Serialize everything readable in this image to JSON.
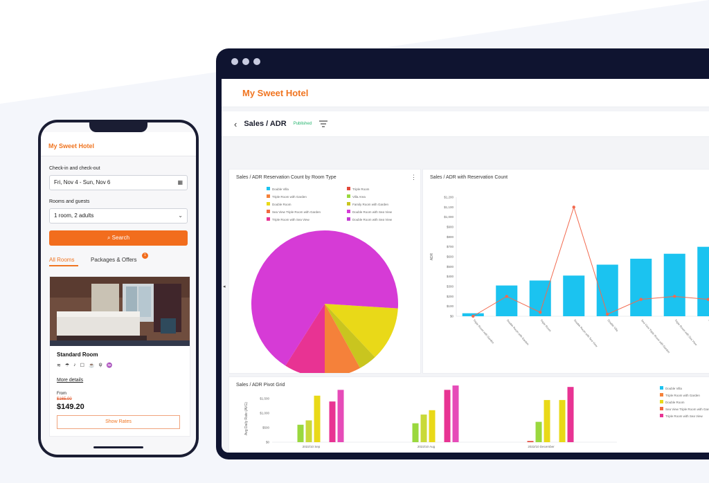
{
  "tablet": {
    "brand": "My Sweet Hotel",
    "toolbar": {
      "title": "Sales / ADR",
      "status": "Published"
    },
    "panels": {
      "pie_title": "Sales / ADR Reservation Count by Room Type",
      "combo_title": "Sales / ADR with Reservation Count",
      "pivot_title": "Sales / ADR Pivot Grid"
    }
  },
  "phone": {
    "brand": "My Sweet Hotel",
    "checkin_label": "Check-in and check-out",
    "dates_value": "Fri, Nov 4 - Sun, Nov 6",
    "guests_label": "Rooms and guests",
    "guests_value": "1 room, 2 adults",
    "search_label": "Search",
    "tabs": {
      "all": "All Rooms",
      "packages": "Packages & Offers",
      "notification_count": "1"
    },
    "room": {
      "name": "Standard Room",
      "more_details": "More details",
      "from": "From",
      "old_price": "$165.00",
      "price": "$149.20",
      "show_rates": "Show Rates"
    }
  },
  "colors": {
    "brand_orange": "#f07521",
    "cyan": "#1bc3f0",
    "magenta": "#d63bd6",
    "pink": "#e83393",
    "orange": "#f5813a",
    "yellow": "#e9d918",
    "green": "#9ad83e",
    "tablet_frame": "#0f1430"
  },
  "chart_data": [
    {
      "type": "pie",
      "title": "Sales / ADR Reservation Count by Room Type",
      "legend": [
        {
          "name": "Double Villa",
          "color": "#1bc3f0"
        },
        {
          "name": "Triple Room",
          "color": "#e2483a"
        },
        {
          "name": "Triple Room with Garden",
          "color": "#f5813a"
        },
        {
          "name": "Villa Area",
          "color": "#9ad83e"
        },
        {
          "name": "Double Room",
          "color": "#e9d918"
        },
        {
          "name": "Family Room with Garden",
          "color": "#c9c51f"
        },
        {
          "name": "Sea View Triple Room with Garden",
          "color": "#f06a3f"
        },
        {
          "name": "Double Room with Sea View",
          "color": "#d63bd6"
        },
        {
          "name": "Triple Room with Sea View",
          "color": "#e83393"
        },
        {
          "name": "Double Room with Sea View",
          "color": "#c43cd3"
        }
      ],
      "slices": [
        {
          "color": "#d63bd6",
          "value": 67
        },
        {
          "color": "#e9d918",
          "value": 12
        },
        {
          "color": "#f5813a",
          "value": 8
        },
        {
          "color": "#e83393",
          "value": 9
        },
        {
          "color": "#c9c51f",
          "value": 4
        }
      ]
    },
    {
      "type": "bar",
      "title": "Sales / ADR with Reservation Count",
      "ylabel": "ADR",
      "yticks": [
        "$0",
        "$100",
        "$200",
        "$300",
        "$400",
        "$500",
        "$600",
        "$700",
        "$800",
        "$900",
        "$1,000",
        "$1,100",
        "$1,200"
      ],
      "categories": [
        "Triple Room with Garden",
        "Double Room with Garden",
        "Triple Room",
        "Double Room with Sea View",
        "Double Villa",
        "Sea View Triple Room with Garden",
        "Triple Room with Sea View",
        "Family Room"
      ],
      "series": [
        {
          "type": "bar",
          "values": [
            30,
            310,
            360,
            410,
            520,
            580,
            630,
            700
          ]
        },
        {
          "type": "line",
          "values": [
            0,
            200,
            40,
            1100,
            20,
            170,
            200,
            170
          ]
        }
      ]
    },
    {
      "type": "bar",
      "title": "Sales / ADR Pivot Grid",
      "ylabel": "Avg Daily Rate (AVG)",
      "yticks": [
        "$0",
        "$500",
        "$1,000",
        "$1,500"
      ],
      "categories": [
        "2022/10 Sep",
        "2022/10 Aug",
        "2022/10 December"
      ],
      "legend": [
        {
          "name": "Double Villa",
          "color": "#1bc3f0"
        },
        {
          "name": "Triple Room with Garden",
          "color": "#f5813a"
        },
        {
          "name": "Double Room",
          "color": "#e9d918"
        },
        {
          "name": "Sea View Triple Room with Garden",
          "color": "#f06a3f"
        },
        {
          "name": "Triple Room with Sea View",
          "color": "#e83393"
        }
      ],
      "groups": [
        {
          "bars": [
            {
              "color": "#9ad83e",
              "value": 600
            },
            {
              "color": "#c9d93a",
              "value": 750
            },
            {
              "color": "#e9d918",
              "value": 1600
            },
            {
              "color": "#e83393",
              "value": 1400
            },
            {
              "color": "#e64bb8",
              "value": 1800
            }
          ]
        },
        {
          "bars": [
            {
              "color": "#9ad83e",
              "value": 650
            },
            {
              "color": "#c9d93a",
              "value": 950
            },
            {
              "color": "#e9d918",
              "value": 1100
            },
            {
              "color": "#e83393",
              "value": 1800
            },
            {
              "color": "#e64bb8",
              "value": 1950
            }
          ]
        },
        {
          "bars": [
            {
              "color": "#e2483a",
              "value": 40
            },
            {
              "color": "#9ad83e",
              "value": 700
            },
            {
              "color": "#e9d918",
              "value": 1450
            },
            {
              "color": "#e9d918",
              "value": 1450
            },
            {
              "color": "#e83393",
              "value": 1900
            }
          ]
        }
      ]
    }
  ]
}
